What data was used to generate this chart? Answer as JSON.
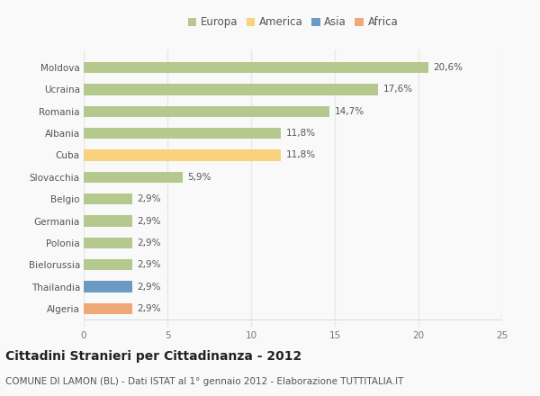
{
  "categories": [
    "Moldova",
    "Ucraina",
    "Romania",
    "Albania",
    "Cuba",
    "Slovacchia",
    "Belgio",
    "Germania",
    "Polonia",
    "Bielorussia",
    "Thailandia",
    "Algeria"
  ],
  "values": [
    20.6,
    17.6,
    14.7,
    11.8,
    11.8,
    5.9,
    2.9,
    2.9,
    2.9,
    2.9,
    2.9,
    2.9
  ],
  "labels": [
    "20,6%",
    "17,6%",
    "14,7%",
    "11,8%",
    "11,8%",
    "5,9%",
    "2,9%",
    "2,9%",
    "2,9%",
    "2,9%",
    "2,9%",
    "2,9%"
  ],
  "colors": [
    "#b5c98e",
    "#b5c98e",
    "#b5c98e",
    "#b5c98e",
    "#f9d27d",
    "#b5c98e",
    "#b5c98e",
    "#b5c98e",
    "#b5c98e",
    "#b5c98e",
    "#6b9bc3",
    "#f0a877"
  ],
  "legend_labels": [
    "Europa",
    "America",
    "Asia",
    "Africa"
  ],
  "legend_colors": [
    "#b5c98e",
    "#f9d27d",
    "#6b9bc3",
    "#f0a877"
  ],
  "title": "Cittadini Stranieri per Cittadinanza - 2012",
  "subtitle": "COMUNE DI LAMON (BL) - Dati ISTAT al 1° gennaio 2012 - Elaborazione TUTTITALIA.IT",
  "xlim": [
    0,
    25
  ],
  "xticks": [
    0,
    5,
    10,
    15,
    20,
    25
  ],
  "background_color": "#f9f9f9",
  "grid_color": "#e8e8e8",
  "bar_height": 0.5,
  "title_fontsize": 10,
  "subtitle_fontsize": 7.5,
  "label_fontsize": 7.5,
  "tick_fontsize": 7.5,
  "legend_fontsize": 8.5
}
